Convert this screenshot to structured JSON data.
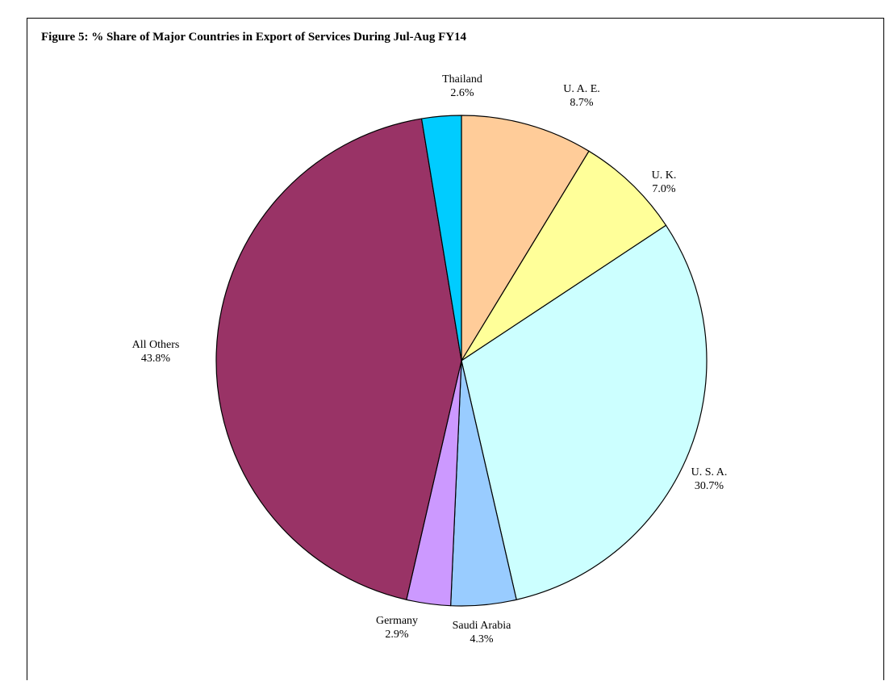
{
  "chart_data": {
    "type": "pie",
    "title": "Figure 5: % Share of Major Countries in Export of Services During Jul-Aug FY14",
    "start_angle_deg": 0,
    "direction": "clockwise",
    "slices": [
      {
        "label": "U. A. E.",
        "value": 8.7,
        "value_label": "8.7%",
        "color": "#FFCC99"
      },
      {
        "label": "U. K.",
        "value": 7.0,
        "value_label": "7.0%",
        "color": "#FFFF99"
      },
      {
        "label": "U. S. A.",
        "value": 30.7,
        "value_label": "30.7%",
        "color": "#CCFFFF"
      },
      {
        "label": "Saudi Arabia",
        "value": 4.3,
        "value_label": "4.3%",
        "color": "#99CCFF"
      },
      {
        "label": "Germany",
        "value": 2.9,
        "value_label": "2.9%",
        "color": "#CC99FF"
      },
      {
        "label": "All Others",
        "value": 43.8,
        "value_label": "43.8%",
        "color": "#993366"
      },
      {
        "label": "Thailand",
        "value": 2.6,
        "value_label": "2.6%",
        "color": "#00CCFF"
      }
    ]
  }
}
